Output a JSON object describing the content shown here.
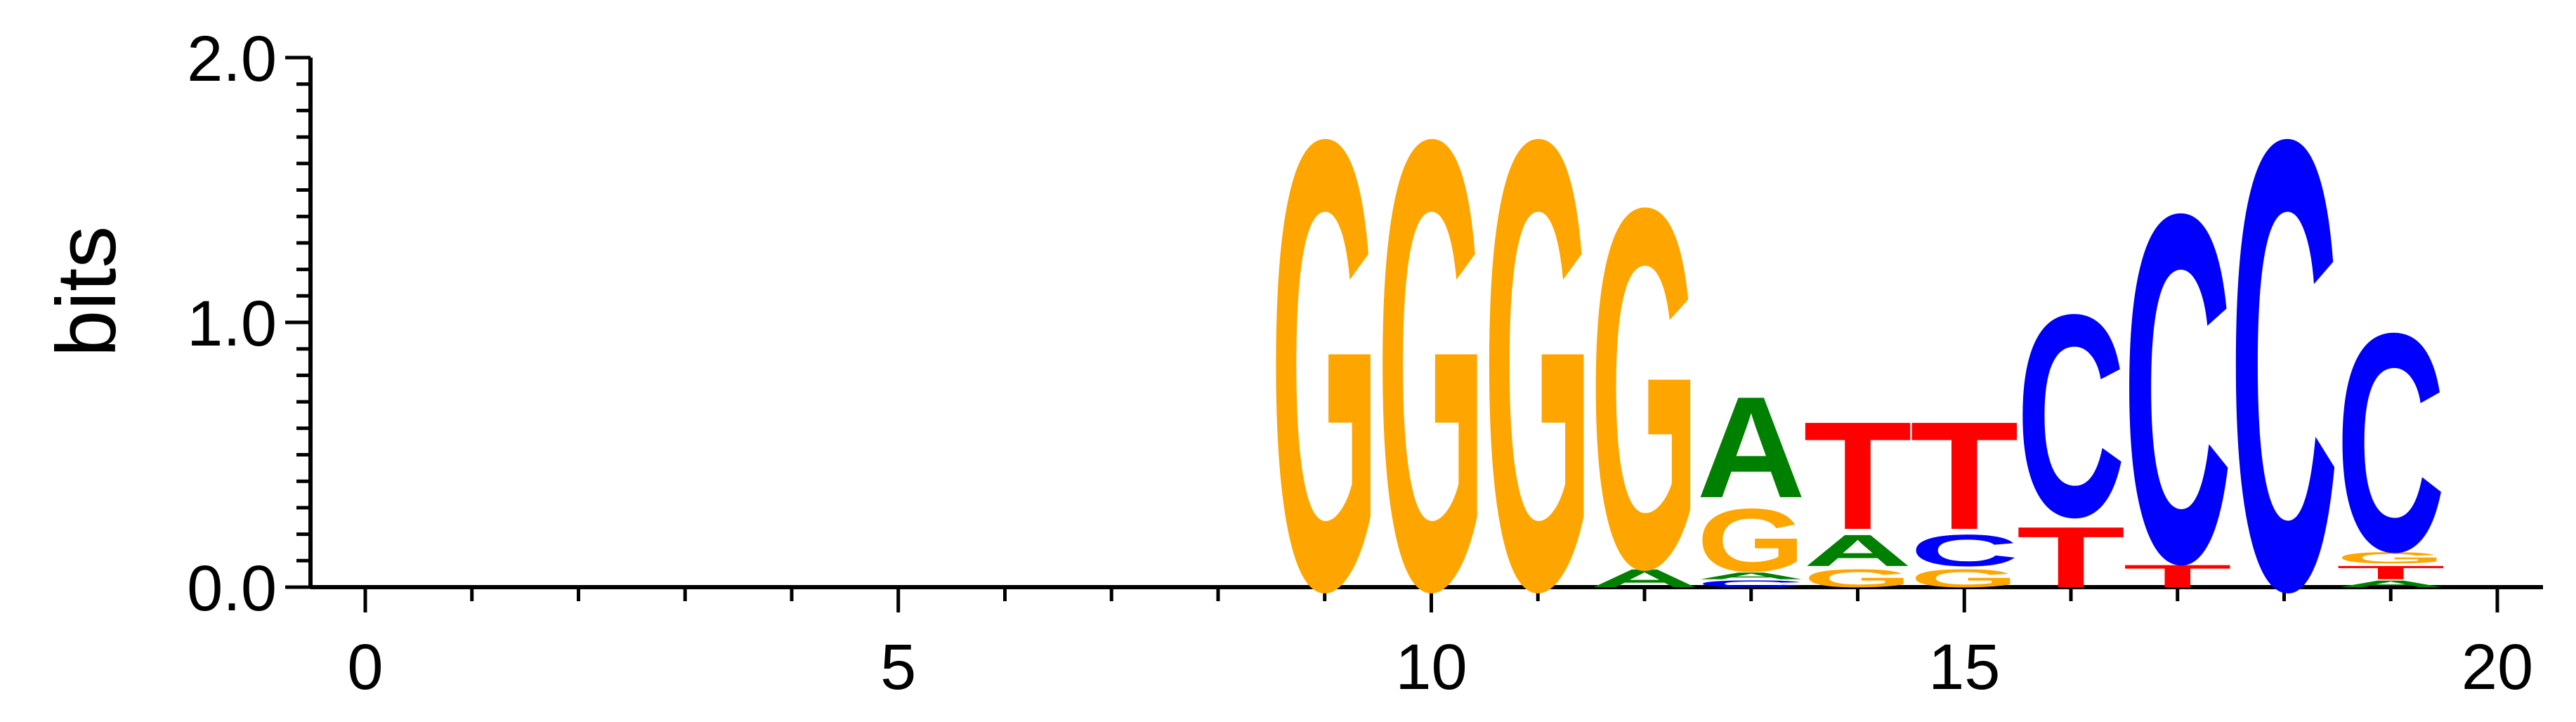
{
  "chart_data": {
    "type": "sequence-logo",
    "ylabel": "bits",
    "xlabel": "",
    "title": "",
    "ylim": [
      0,
      2.0
    ],
    "xlim": [
      0,
      20
    ],
    "x_ticks": [
      {
        "value": 0,
        "label": "0"
      },
      {
        "value": 5,
        "label": "5"
      },
      {
        "value": 10,
        "label": "10"
      },
      {
        "value": 15,
        "label": "15"
      },
      {
        "value": 20,
        "label": "20"
      }
    ],
    "y_ticks": [
      {
        "value": 0.0,
        "label": "0.0"
      },
      {
        "value": 1.0,
        "label": "1.0"
      },
      {
        "value": 2.0,
        "label": "2.0"
      }
    ],
    "x_minor_step": 1,
    "y_minor_step": 0.1,
    "colors": {
      "A": "#008000",
      "C": "#0000ff",
      "G": "#ffa500",
      "T": "#ff0000"
    },
    "positions": [
      {
        "x": 9,
        "stack": [
          {
            "letter": "G",
            "bits": 2.0
          }
        ]
      },
      {
        "x": 10,
        "stack": [
          {
            "letter": "G",
            "bits": 2.0
          }
        ]
      },
      {
        "x": 11,
        "stack": [
          {
            "letter": "G",
            "bits": 2.0
          }
        ]
      },
      {
        "x": 12,
        "stack": [
          {
            "letter": "A",
            "bits": 0.08
          },
          {
            "letter": "G",
            "bits": 1.6
          }
        ]
      },
      {
        "x": 13,
        "stack": [
          {
            "letter": "C",
            "bits": 0.03
          },
          {
            "letter": "A",
            "bits": 0.03
          },
          {
            "letter": "G",
            "bits": 0.28
          },
          {
            "letter": "A",
            "bits": 0.45
          }
        ]
      },
      {
        "x": 14,
        "stack": [
          {
            "letter": "G",
            "bits": 0.08
          },
          {
            "letter": "A",
            "bits": 0.14
          },
          {
            "letter": "T",
            "bits": 0.48
          }
        ]
      },
      {
        "x": 15,
        "stack": [
          {
            "letter": "G",
            "bits": 0.08
          },
          {
            "letter": "C",
            "bits": 0.14
          },
          {
            "letter": "T",
            "bits": 0.48
          }
        ]
      },
      {
        "x": 16,
        "stack": [
          {
            "letter": "T",
            "bits": 0.27
          },
          {
            "letter": "C",
            "bits": 0.9
          }
        ]
      },
      {
        "x": 17,
        "stack": [
          {
            "letter": "T",
            "bits": 0.1
          },
          {
            "letter": "C",
            "bits": 1.55
          }
        ]
      },
      {
        "x": 18,
        "stack": [
          {
            "letter": "C",
            "bits": 2.0
          }
        ]
      },
      {
        "x": 19,
        "stack": [
          {
            "letter": "A",
            "bits": 0.03
          },
          {
            "letter": "T",
            "bits": 0.06
          },
          {
            "letter": "G",
            "bits": 0.05
          },
          {
            "letter": "C",
            "bits": 0.97
          }
        ]
      }
    ]
  }
}
